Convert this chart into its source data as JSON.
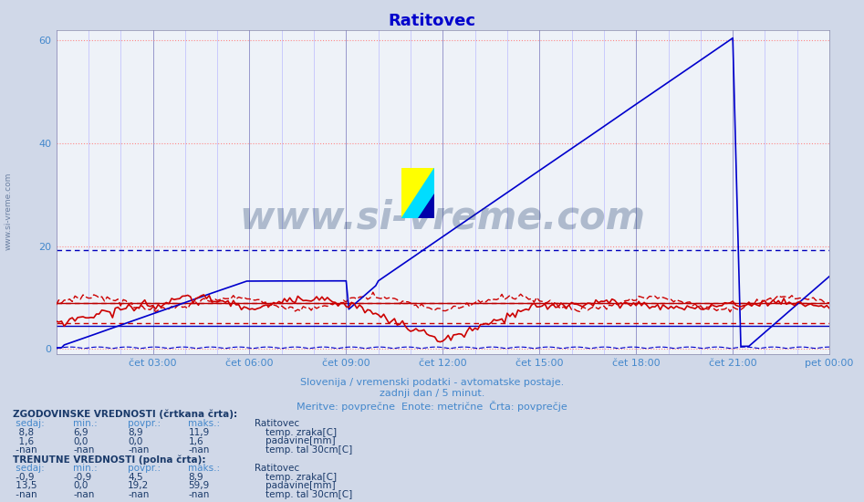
{
  "title": "Ratitovec",
  "title_color": "#0000cc",
  "bg_color": "#d0d8e8",
  "plot_bg_color": "#eef2f8",
  "xlim": [
    0,
    288
  ],
  "ylim": [
    -1,
    62
  ],
  "yticks": [
    0,
    20,
    40,
    60
  ],
  "xtick_labels": [
    "čet 03:00",
    "čet 06:00",
    "čet 09:00",
    "čet 12:00",
    "čet 15:00",
    "čet 18:00",
    "čet 21:00",
    "pet 00:00"
  ],
  "xtick_positions": [
    36,
    72,
    108,
    144,
    180,
    216,
    252,
    288
  ],
  "tick_color": "#4488cc",
  "watermark": "www.si-vreme.com",
  "watermark_color": "#1a3a6a",
  "watermark_alpha": 0.3,
  "subtitle1": "Slovenija / vremenski podatki - avtomatske postaje.",
  "subtitle2": "zadnji dan / 5 minut.",
  "subtitle3": "Meritve: povprečne  Enote: metrične  Črta: povprečje",
  "subtitle_color": "#4488cc",
  "text_color": "#1a3a6a",
  "col_header_color": "#4488cc",
  "hline_blue_dashed": 19.2,
  "hline_red_dashed_1": 8.9,
  "hline_red_dashed_2": 5.0,
  "hline_blue_solid": 4.5,
  "hline_red_solid": 8.9
}
